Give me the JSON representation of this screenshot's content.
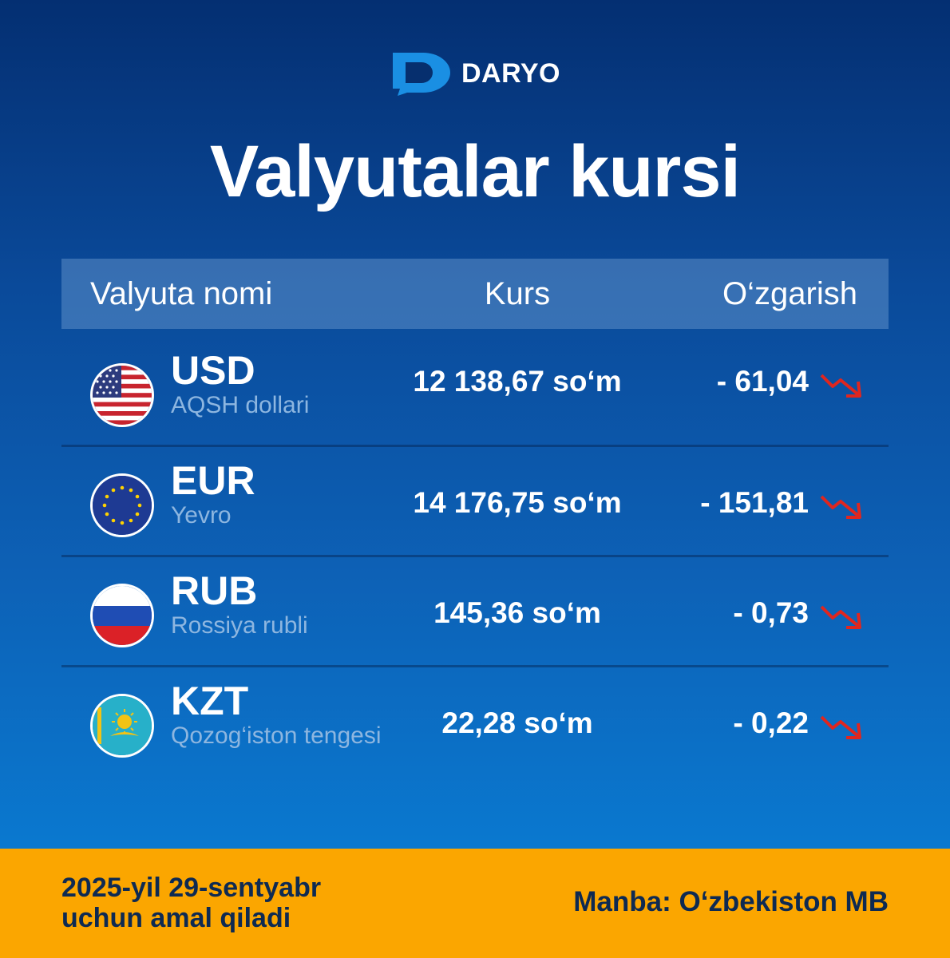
{
  "brand": {
    "name": "DARYO",
    "logo_icon": "daryo-logo-icon",
    "accent_color": "#1a8fe3"
  },
  "title": "Valyutalar kursi",
  "table": {
    "headers": {
      "name": "Valyuta nomi",
      "rate": "Kurs",
      "change": "O‘zgarish"
    },
    "rows": [
      {
        "code": "USD",
        "name": "AQSH dollari",
        "rate": "12 138,67 so‘m",
        "change": "- 61,04",
        "trend": "down",
        "flag_icon": "us-flag-icon"
      },
      {
        "code": "EUR",
        "name": "Yevro",
        "rate": "14 176,75 so‘m",
        "change": "- 151,81",
        "trend": "down",
        "flag_icon": "eu-flag-icon"
      },
      {
        "code": "RUB",
        "name": "Rossiya rubli",
        "rate": "145,36 so‘m",
        "change": "- 0,73",
        "trend": "down",
        "flag_icon": "ru-flag-icon"
      },
      {
        "code": "KZT",
        "name": "Qozog‘iston tengesi",
        "rate": "22,28 so‘m",
        "change": "- 0,22",
        "trend": "down",
        "flag_icon": "kz-flag-icon"
      }
    ]
  },
  "footer": {
    "date_line1": "2025-yil 29-sentyabr",
    "date_line2": "uchun amal qiladi",
    "source": "Manba: O‘zbekiston MB",
    "background_color": "#fba600"
  },
  "colors": {
    "trend_down": "#e0261f"
  }
}
